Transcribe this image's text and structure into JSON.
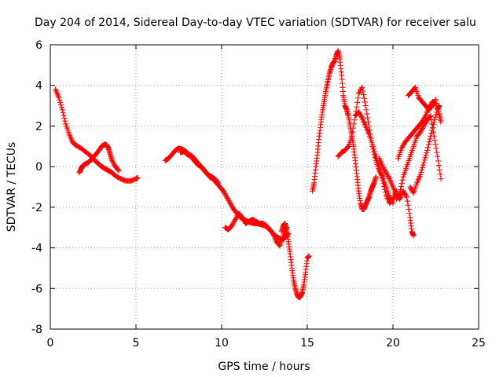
{
  "chart_data": {
    "type": "scatter",
    "title": "Day 204 of 2014, Sidereal Day-to-day VTEC variation (SDTVAR) for receiver salu",
    "xlabel": "GPS time / hours",
    "ylabel": "SDTVAR / TECUs",
    "xlim": [
      0,
      25
    ],
    "ylim": [
      -8,
      6
    ],
    "xticks": [
      0,
      5,
      10,
      15,
      20,
      25
    ],
    "yticks": [
      -8,
      -6,
      -4,
      -2,
      0,
      2,
      4,
      6
    ],
    "grid": true,
    "marker": "+",
    "color": "#ff0000",
    "series": [
      {
        "name": "seg1",
        "x": [
          0.3,
          0.5,
          0.7,
          0.9,
          1.1,
          1.3,
          1.5,
          1.8,
          2.1,
          2.4,
          2.6,
          2.8,
          3.0,
          3.2,
          3.4,
          3.6,
          3.8,
          4.1,
          4.4,
          4.7,
          5.0,
          5.1
        ],
        "y": [
          3.8,
          3.4,
          2.8,
          2.1,
          1.6,
          1.2,
          1.05,
          0.9,
          0.7,
          0.5,
          0.3,
          0.15,
          0.0,
          -0.1,
          -0.2,
          -0.3,
          -0.45,
          -0.6,
          -0.7,
          -0.7,
          -0.6,
          -0.55
        ]
      },
      {
        "name": "seg2",
        "x": [
          1.7,
          1.8,
          1.9,
          2.0,
          2.2,
          2.4,
          2.6,
          2.8,
          3.0,
          3.1,
          3.2,
          3.3,
          3.4,
          3.5,
          3.6,
          3.8,
          4.0
        ],
        "y": [
          -0.3,
          -0.1,
          0.05,
          0.1,
          0.2,
          0.35,
          0.55,
          0.75,
          1.0,
          1.05,
          1.1,
          1.05,
          0.9,
          0.6,
          0.3,
          0.0,
          -0.2
        ]
      },
      {
        "name": "seg3",
        "x": [
          6.7,
          6.9,
          7.1,
          7.3,
          7.5,
          7.7,
          7.9,
          8.1,
          8.3,
          8.5,
          8.7,
          8.9,
          9.1,
          9.3,
          9.5,
          9.7,
          9.9,
          10.1,
          10.3,
          10.5,
          10.7,
          10.9,
          11.1,
          11.3,
          11.5,
          11.7,
          11.9,
          12.1,
          12.3,
          12.5,
          12.7,
          12.9,
          13.1,
          13.3,
          13.5,
          13.7,
          13.9
        ],
        "y": [
          0.3,
          0.4,
          0.6,
          0.8,
          0.9,
          0.85,
          0.75,
          0.6,
          0.5,
          0.3,
          0.1,
          -0.1,
          -0.3,
          -0.5,
          -0.6,
          -0.8,
          -1.0,
          -1.2,
          -1.5,
          -1.8,
          -2.1,
          -2.3,
          -2.5,
          -2.6,
          -2.7,
          -2.75,
          -2.8,
          -2.8,
          -2.85,
          -2.9,
          -3.0,
          -3.2,
          -3.4,
          -3.5,
          -3.6,
          -3.5,
          -3.3
        ]
      },
      {
        "name": "seg4",
        "x": [
          7.6,
          7.8,
          8.0,
          8.2,
          8.4,
          8.6,
          8.8,
          9.0,
          9.2,
          9.4,
          9.6,
          9.8
        ],
        "y": [
          0.7,
          0.75,
          0.6,
          0.5,
          0.3,
          0.1,
          0.0,
          -0.2,
          -0.4,
          -0.5,
          -0.6,
          -0.8
        ]
      },
      {
        "name": "seg5",
        "x": [
          10.2,
          10.4,
          10.6,
          10.8,
          11.0,
          11.2,
          11.4,
          11.6,
          11.8,
          12.0,
          12.2,
          12.4,
          12.6,
          12.8,
          13.0,
          13.2,
          13.4,
          13.6,
          13.8
        ],
        "y": [
          -3.0,
          -3.1,
          -2.9,
          -2.6,
          -2.3,
          -2.5,
          -2.8,
          -2.7,
          -2.6,
          -2.7,
          -2.8,
          -2.8,
          -2.9,
          -3.1,
          -3.3,
          -3.7,
          -3.9,
          -3.4,
          -3.0
        ]
      },
      {
        "name": "seg6",
        "x": [
          13.5,
          13.6,
          13.7,
          13.8,
          13.9,
          14.0,
          14.1,
          14.2,
          14.3,
          14.4,
          14.5,
          14.6,
          14.7,
          14.8,
          14.9,
          15.0,
          15.1
        ],
        "y": [
          -3.2,
          -2.9,
          -2.8,
          -3.1,
          -3.7,
          -4.3,
          -5.0,
          -5.6,
          -6.0,
          -6.3,
          -6.45,
          -6.4,
          -6.2,
          -5.8,
          -5.2,
          -4.5,
          -4.4
        ]
      },
      {
        "name": "seg7",
        "x": [
          15.3,
          15.4,
          15.5,
          15.6,
          15.7,
          15.8,
          15.9,
          16.0,
          16.1,
          16.2,
          16.3,
          16.4,
          16.5,
          16.6,
          16.7,
          16.8,
          16.9,
          17.0,
          17.1,
          17.2,
          17.3,
          17.4,
          17.5,
          17.6,
          17.7,
          17.8,
          17.9,
          18.0,
          18.1,
          18.2,
          18.3,
          18.4,
          18.5,
          18.6,
          18.7,
          18.8,
          18.9,
          19.0
        ],
        "y": [
          -1.2,
          -0.8,
          0.0,
          0.7,
          1.5,
          2.2,
          2.8,
          3.3,
          3.8,
          4.2,
          4.6,
          4.9,
          5.1,
          5.2,
          5.5,
          5.7,
          5.3,
          4.5,
          3.5,
          3.0,
          2.8,
          2.5,
          2.0,
          1.5,
          1.0,
          0.3,
          -0.5,
          -1.2,
          -1.8,
          -2.1,
          -2.1,
          -1.9,
          -1.7,
          -1.5,
          -1.2,
          -1.0,
          -0.8,
          -0.5
        ]
      },
      {
        "name": "seg8",
        "x": [
          16.8,
          17.0,
          17.2,
          17.4,
          17.6,
          17.8,
          18.0,
          18.2,
          18.4,
          18.6,
          18.8,
          19.0,
          19.2,
          19.4,
          19.6,
          19.8,
          20.0
        ],
        "y": [
          0.5,
          0.7,
          0.8,
          1.0,
          1.5,
          2.5,
          3.6,
          3.9,
          3.0,
          2.0,
          1.0,
          0.3,
          -0.2,
          -0.5,
          -1.0,
          -1.5,
          -1.8
        ]
      },
      {
        "name": "seg9",
        "x": [
          17.8,
          18.0,
          18.2,
          18.4,
          18.6,
          18.8,
          19.0,
          19.2,
          19.4,
          19.6,
          19.8,
          20.0,
          20.2
        ],
        "y": [
          2.5,
          2.7,
          2.4,
          2.0,
          1.6,
          1.1,
          0.5,
          0.0,
          -0.7,
          -1.4,
          -1.8,
          -1.6,
          -1.2
        ]
      },
      {
        "name": "seg10",
        "x": [
          19.2,
          19.4,
          19.6,
          19.8,
          20.0,
          20.2,
          20.4,
          20.6,
          20.8,
          21.0,
          21.1,
          21.2
        ],
        "y": [
          0.4,
          0.0,
          -0.3,
          -0.6,
          -1.0,
          -1.4,
          -1.6,
          -1.2,
          -1.5,
          -2.5,
          -3.2,
          -3.4
        ]
      },
      {
        "name": "seg11",
        "x": [
          20.3,
          20.5,
          20.7,
          20.9,
          21.1,
          21.3,
          21.5,
          21.7,
          21.9,
          22.1,
          22.3,
          22.5,
          22.7,
          22.8
        ],
        "y": [
          0.4,
          0.9,
          1.2,
          1.4,
          1.6,
          1.8,
          2.0,
          2.2,
          2.5,
          2.9,
          3.2,
          3.1,
          2.6,
          2.2
        ]
      },
      {
        "name": "seg12",
        "x": [
          20.2,
          20.4,
          20.6,
          20.8,
          21.0,
          21.2,
          21.4,
          21.6,
          21.8,
          22.0,
          22.2,
          22.4,
          22.6,
          22.8
        ],
        "y": [
          -1.6,
          -1.3,
          -0.5,
          0.0,
          0.5,
          1.0,
          1.5,
          1.7,
          2.0,
          2.3,
          2.5,
          1.5,
          0.5,
          -0.6
        ]
      },
      {
        "name": "seg13",
        "x": [
          20.9,
          21.1,
          21.3,
          21.5,
          21.7,
          21.9,
          22.1,
          22.3,
          22.5
        ],
        "y": [
          3.5,
          3.7,
          3.9,
          3.4,
          3.2,
          3.0,
          2.8,
          3.0,
          3.3
        ]
      },
      {
        "name": "seg14",
        "x": [
          21.0,
          21.2,
          21.4,
          21.6,
          21.8,
          22.0,
          22.2,
          22.4,
          22.6,
          22.7
        ],
        "y": [
          -1.0,
          -1.3,
          -0.8,
          -0.4,
          0.2,
          0.8,
          1.5,
          2.2,
          2.8,
          3.0
        ]
      }
    ]
  }
}
